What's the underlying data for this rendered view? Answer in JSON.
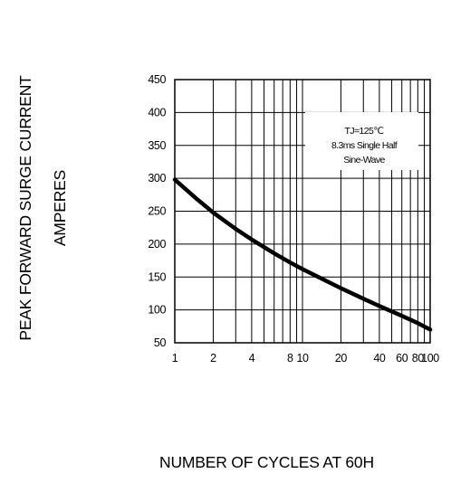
{
  "chart_data": {
    "type": "line",
    "ylabel": "PEAK FORWARD SURGE CURRENT",
    "ylabel_units": "AMPERES",
    "xlabel": "NUMBER OF CYCLES AT 60H",
    "x_scale": "log",
    "xlim": [
      1,
      100
    ],
    "ylim": [
      50,
      450
    ],
    "x_tick_labels": [
      "1",
      "2",
      "4",
      "8",
      "10",
      "20",
      "40",
      "60",
      "80",
      "100"
    ],
    "x_tick_values": [
      1,
      2,
      4,
      8,
      10,
      20,
      40,
      60,
      80,
      100
    ],
    "y_tick_labels": [
      "450",
      "400",
      "350",
      "300",
      "250",
      "200",
      "150",
      "100",
      "50"
    ],
    "y_tick_values": [
      450,
      400,
      350,
      300,
      250,
      200,
      150,
      100,
      50
    ],
    "grid": true,
    "annotation": [
      "TJ=125℃",
      "8.3ms Single Half",
      "Sine-Wave"
    ],
    "series": [
      {
        "x": [
          1,
          1.5,
          2,
          3,
          4,
          6,
          8,
          10,
          15,
          20,
          30,
          40,
          60,
          80,
          100
        ],
        "y": [
          298,
          268,
          248,
          223,
          207,
          186,
          172,
          162,
          145,
          133,
          117,
          106,
          91,
          80,
          70
        ]
      }
    ]
  }
}
